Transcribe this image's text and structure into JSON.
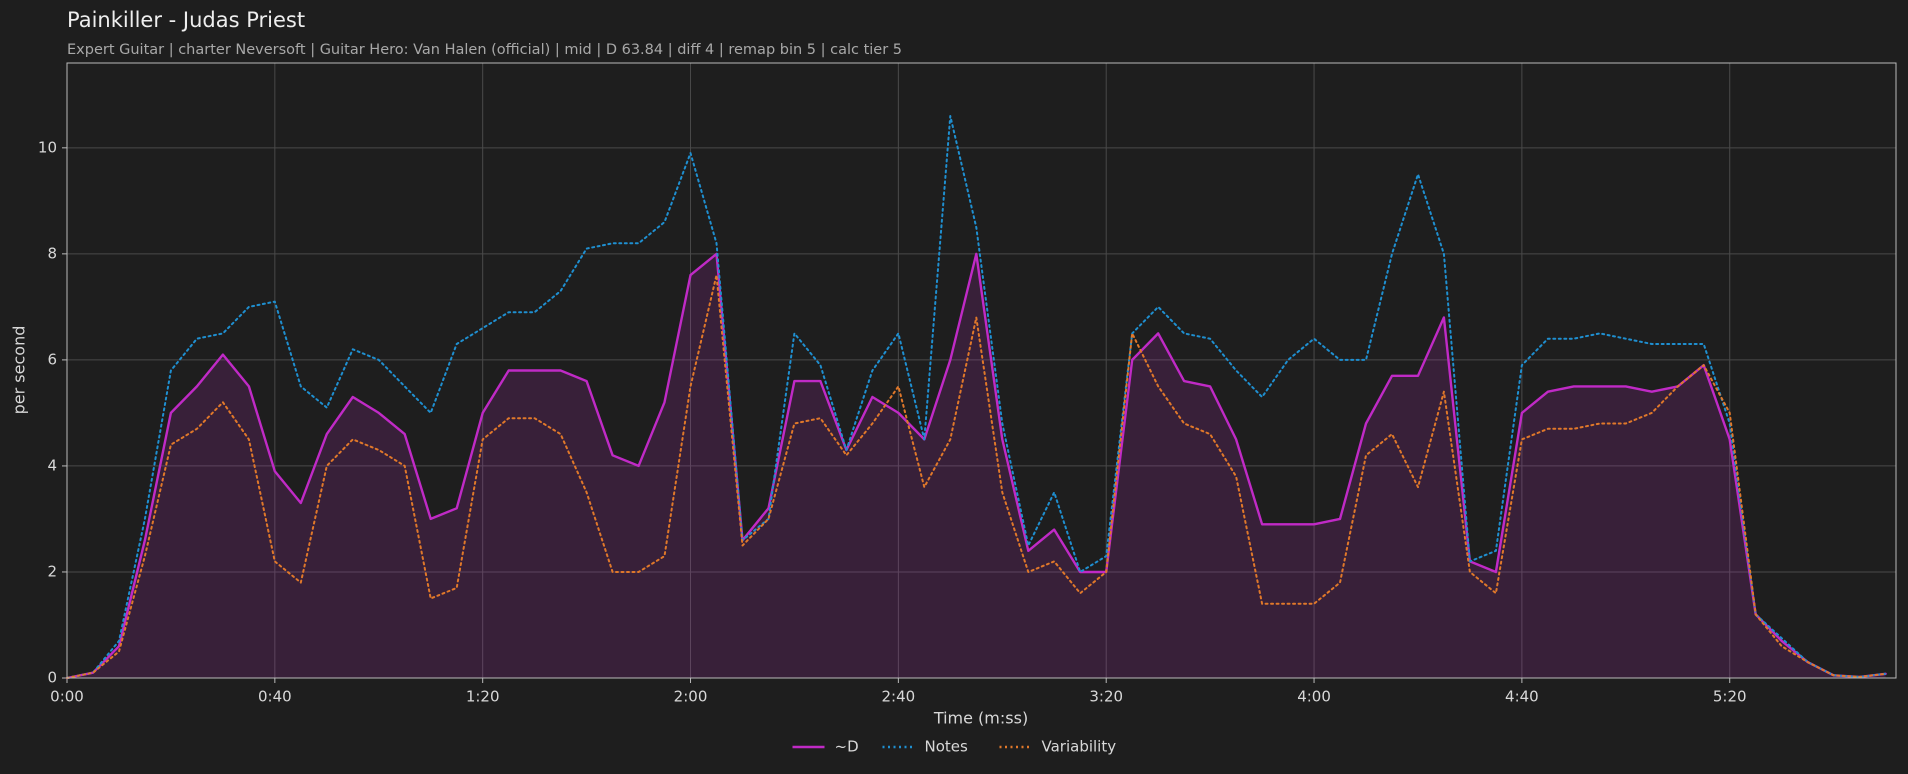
{
  "chart_data": {
    "type": "line",
    "title": "Painkiller - Judas Priest",
    "subtitle": "Expert Guitar  |  charter Neversoft  |  Guitar Hero: Van Halen (official)  |  mid  |  D 63.84  |  diff 4  |  remap bin 5  |  calc tier 5",
    "x_label": "Time (m:ss)",
    "y_label": "per second",
    "x": [
      0,
      5,
      10,
      15,
      20,
      25,
      30,
      35,
      40,
      45,
      50,
      55,
      60,
      65,
      70,
      75,
      80,
      85,
      90,
      95,
      100,
      105,
      110,
      115,
      120,
      125,
      130,
      135,
      140,
      145,
      150,
      155,
      160,
      165,
      170,
      175,
      180,
      185,
      190,
      195,
      200,
      205,
      210,
      215,
      220,
      225,
      230,
      235,
      240,
      245,
      250,
      255,
      260,
      265,
      270,
      275,
      280,
      285,
      290,
      295,
      300,
      305,
      310,
      315,
      320,
      325,
      330,
      335,
      340,
      345,
      350
    ],
    "series": [
      {
        "name": "~D",
        "color": "#c02ac6",
        "style": "solid",
        "fill": true,
        "values": [
          0,
          0.1,
          0.6,
          2.6,
          5.0,
          5.5,
          6.1,
          5.5,
          3.9,
          3.3,
          4.6,
          5.3,
          5.0,
          4.6,
          3.0,
          3.2,
          5.0,
          5.8,
          5.8,
          5.8,
          5.6,
          4.2,
          4.0,
          5.2,
          7.6,
          8.0,
          2.6,
          3.2,
          5.6,
          5.6,
          4.3,
          5.3,
          5.0,
          4.5,
          6.0,
          8.0,
          4.5,
          2.4,
          2.8,
          2.0,
          2.0,
          6.0,
          6.5,
          5.6,
          5.5,
          4.5,
          2.9,
          2.9,
          2.9,
          3.0,
          4.8,
          5.7,
          5.7,
          6.8,
          2.2,
          2.0,
          5.0,
          5.4,
          5.5,
          5.5,
          5.5,
          5.4,
          5.5,
          5.9,
          4.5,
          1.2,
          0.7,
          0.3,
          0.05,
          0.02,
          0.08
        ]
      },
      {
        "name": "Notes",
        "color": "#1f8fd0",
        "style": "dotted",
        "fill": false,
        "values": [
          0,
          0.1,
          0.7,
          3.0,
          5.8,
          6.4,
          6.5,
          7.0,
          7.1,
          5.5,
          5.1,
          6.2,
          6.0,
          5.5,
          5.0,
          6.3,
          6.6,
          6.9,
          6.9,
          7.3,
          8.1,
          8.2,
          8.2,
          8.6,
          9.9,
          8.2,
          2.6,
          3.0,
          6.5,
          5.9,
          4.3,
          5.8,
          6.5,
          4.5,
          10.6,
          8.5,
          4.8,
          2.5,
          3.5,
          2.0,
          2.3,
          6.5,
          7.0,
          6.5,
          6.4,
          5.8,
          5.3,
          6.0,
          6.4,
          6.0,
          6.0,
          8.0,
          9.5,
          8.0,
          2.2,
          2.4,
          5.9,
          6.4,
          6.4,
          6.5,
          6.4,
          6.3,
          6.3,
          6.3,
          4.8,
          1.2,
          0.75,
          0.3,
          0.05,
          0.02,
          0.08
        ]
      },
      {
        "name": "Variability",
        "color": "#e0782a",
        "style": "dotted",
        "fill": false,
        "values": [
          0,
          0.1,
          0.5,
          2.3,
          4.4,
          4.7,
          5.2,
          4.5,
          2.2,
          1.8,
          4.0,
          4.5,
          4.3,
          4.0,
          1.5,
          1.7,
          4.5,
          4.9,
          4.9,
          4.6,
          3.5,
          2.0,
          2.0,
          2.3,
          5.5,
          7.6,
          2.5,
          3.0,
          4.8,
          4.9,
          4.2,
          4.8,
          5.5,
          3.6,
          4.5,
          6.8,
          3.5,
          2.0,
          2.2,
          1.6,
          2.0,
          6.5,
          5.5,
          4.8,
          4.6,
          3.8,
          1.4,
          1.4,
          1.4,
          1.8,
          4.2,
          4.6,
          3.6,
          5.4,
          2.0,
          1.6,
          4.5,
          4.7,
          4.7,
          4.8,
          4.8,
          5.0,
          5.5,
          5.9,
          5.0,
          1.2,
          0.6,
          0.3,
          0.05,
          0.02,
          0.08
        ]
      }
    ],
    "xlim": [
      0,
      352
    ],
    "xticks": [
      {
        "value": 0,
        "label": "0:00"
      },
      {
        "value": 40,
        "label": "0:40"
      },
      {
        "value": 80,
        "label": "1:20"
      },
      {
        "value": 120,
        "label": "2:00"
      },
      {
        "value": 160,
        "label": "2:40"
      },
      {
        "value": 200,
        "label": "3:20"
      },
      {
        "value": 240,
        "label": "4:00"
      },
      {
        "value": 280,
        "label": "4:40"
      },
      {
        "value": 320,
        "label": "5:20"
      }
    ],
    "ylim": [
      0,
      11.6
    ],
    "yticks": [
      0,
      2,
      4,
      6,
      8,
      10
    ],
    "grid": true,
    "legend": "bottom"
  }
}
